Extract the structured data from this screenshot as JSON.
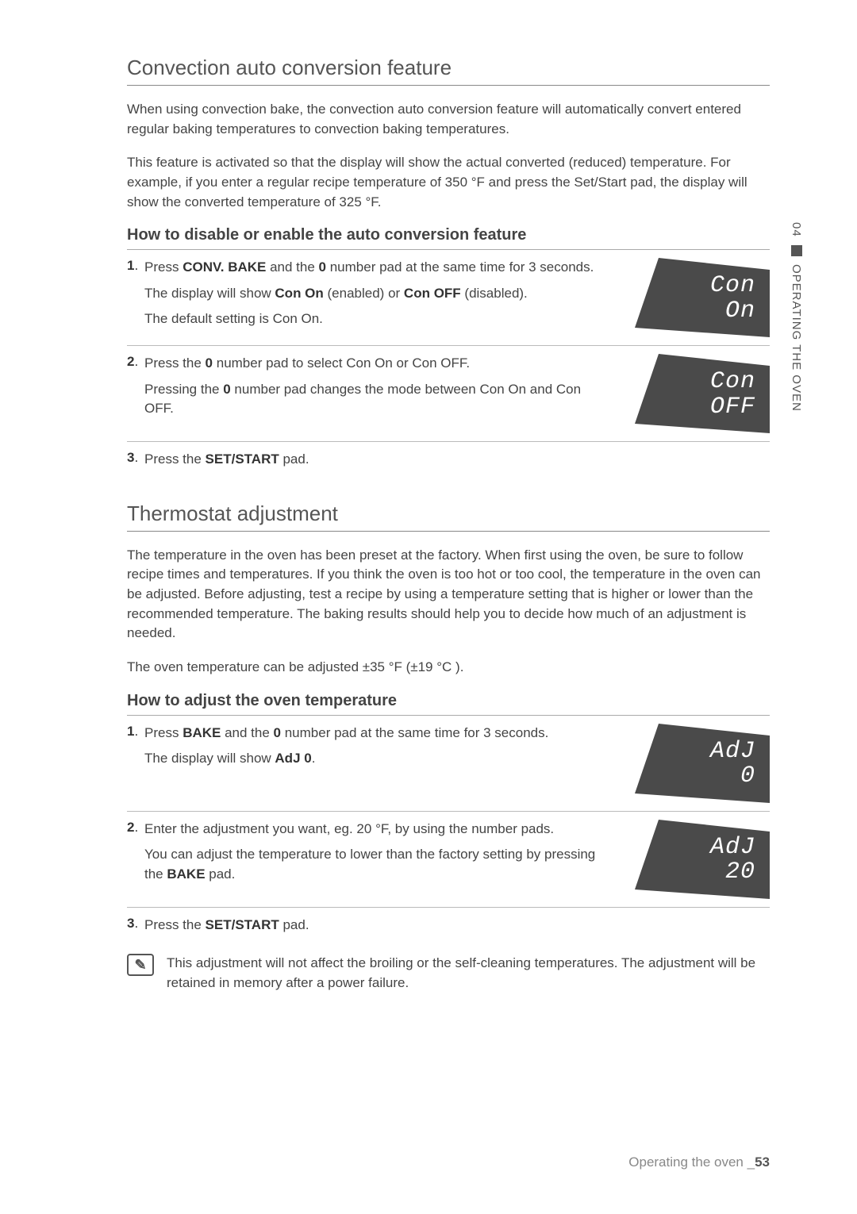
{
  "sideTab": {
    "num": "04",
    "label": "OPERATING THE OVEN"
  },
  "section1": {
    "title": "Convection auto conversion feature",
    "p1": "When using convection bake, the convection auto conversion feature will automatically convert entered regular baking temperatures to convection baking temperatures.",
    "p2": "This feature is activated so that the display will show the actual converted (reduced) temperature. For example, if you enter a regular recipe temperature of 350 °F and press the Set/Start pad, the display will show the converted temperature of 325 °F.",
    "sub": "How to disable or enable the auto conversion feature",
    "steps": [
      {
        "num": "1",
        "lines": [
          "Press <b>CONV. BAKE</b> and the <b>0</b> number pad at the same time for 3 seconds.",
          "The display will show <b>Con On</b> (enabled) or <b>Con OFF</b> (disabled).",
          "The default setting is Con On."
        ],
        "display": "Con\nOn"
      },
      {
        "num": "2",
        "lines": [
          "Press the <b>0</b> number pad to select Con On or Con OFF.",
          "Pressing the <b>0</b> number pad changes the mode between Con On and Con OFF."
        ],
        "display": "Con\nOFF"
      },
      {
        "num": "3",
        "lines": [
          "Press the <b>SET/START</b> pad."
        ],
        "display": null
      }
    ]
  },
  "section2": {
    "title": "Thermostat adjustment",
    "p1": "The temperature in the oven has been preset at the factory. When first using the oven, be sure to follow recipe times and temperatures. If you think the oven is too hot or too cool, the temperature in the oven can be adjusted. Before adjusting, test a recipe by using a temperature setting that is higher or lower than the recommended temperature. The baking results should help you to decide how much of an adjustment is needed.",
    "p2": "The oven temperature can be adjusted ±35 °F (±19 °C ).",
    "sub": "How to adjust the oven temperature",
    "steps": [
      {
        "num": "1",
        "lines": [
          "Press <b>BAKE</b> and the <b>0</b> number pad at the same time for 3 seconds.",
          "The display will show <b>AdJ 0</b>."
        ],
        "display": "AdJ\n0"
      },
      {
        "num": "2",
        "lines": [
          "Enter the adjustment you want, eg. 20 °F, by using the number pads.",
          "You can adjust the temperature to lower than the factory setting by pressing the <b>BAKE</b> pad."
        ],
        "display": "AdJ\n20"
      },
      {
        "num": "3",
        "lines": [
          "Press the <b>SET/START</b> pad."
        ],
        "display": null
      }
    ],
    "note": "This adjustment will not affect the broiling or the self-cleaning temperatures. The adjustment will be retained in memory after a power failure."
  },
  "footer": {
    "label": "Operating the oven",
    "sep": "_",
    "page": "53"
  },
  "colors": {
    "shape": "#4a4a4a"
  }
}
